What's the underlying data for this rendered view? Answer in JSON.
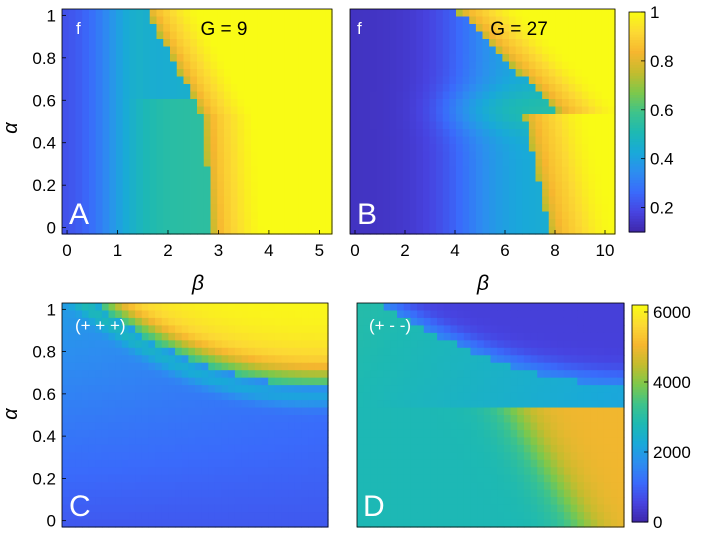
{
  "colormap": [
    "#3e26a8",
    "#4743e0",
    "#3a6afb",
    "#2d8df0",
    "#19a9d9",
    "#1db9b3",
    "#3ec38b",
    "#7ec84a",
    "#c4bc2e",
    "#f6b62f",
    "#fcd934",
    "#f9fb15"
  ],
  "chart_data": [
    {
      "type": "heatmap",
      "panel_letter": "A",
      "corner_label": "f",
      "title": "G = 9",
      "xlabel": "β",
      "ylabel": "α",
      "xlim": [
        -0.1,
        5.25
      ],
      "ylim": [
        -0.03,
        1.03
      ],
      "x_ticks": [
        0,
        1,
        2,
        3,
        4,
        5
      ],
      "y_ticks": [
        0,
        0.2,
        0.4,
        0.6,
        0.8,
        1
      ],
      "x_tick_labels": [
        "0",
        "1",
        "2",
        "3",
        "4",
        "5"
      ],
      "y_tick_labels": [
        "0",
        "0.2",
        "0.4",
        "0.6",
        "0.8",
        "1"
      ],
      "grid": false
    },
    {
      "type": "heatmap",
      "panel_letter": "B",
      "corner_label": "f",
      "title": "G = 27",
      "xlabel": "β",
      "ylabel": "",
      "xlim": [
        -0.2,
        10.4
      ],
      "ylim": [
        -0.03,
        1.03
      ],
      "x_ticks": [
        0,
        2,
        4,
        6,
        8,
        10
      ],
      "y_ticks": [
        0,
        0.2,
        0.4,
        0.6,
        0.8,
        1
      ],
      "x_tick_labels": [
        "0",
        "2",
        "4",
        "6",
        "8",
        "10"
      ],
      "y_tick_labels": [],
      "grid": false,
      "colorbar": {
        "ticks": [
          0.2,
          0.4,
          0.6,
          0.8,
          1
        ],
        "tick_labels": [
          "0.2",
          "0.4",
          "0.6",
          "0.8",
          "1"
        ],
        "range": [
          0.1,
          1.0
        ]
      }
    },
    {
      "type": "heatmap",
      "panel_letter": "C",
      "corner_label": "(+ + +)",
      "title": "",
      "xlabel": "",
      "ylabel": "α",
      "ylim": [
        -0.03,
        1.03
      ],
      "y_ticks": [
        0,
        0.2,
        0.4,
        0.6,
        0.8,
        1
      ],
      "y_tick_labels": [
        "0",
        "0.2",
        "0.4",
        "0.6",
        "0.8",
        "1"
      ],
      "grid": false
    },
    {
      "type": "heatmap",
      "panel_letter": "D",
      "corner_label": "(+ - -)",
      "title": "",
      "xlabel": "",
      "ylabel": "",
      "ylim": [
        -0.03,
        1.03
      ],
      "y_ticks": [
        0,
        0.2,
        0.4,
        0.6,
        0.8,
        1
      ],
      "y_tick_labels": [],
      "grid": false,
      "colorbar": {
        "ticks": [
          0,
          2000,
          4000,
          6000
        ],
        "tick_labels": [
          "0",
          "2000",
          "4000",
          "6000"
        ],
        "range": [
          0,
          6200
        ]
      }
    }
  ]
}
